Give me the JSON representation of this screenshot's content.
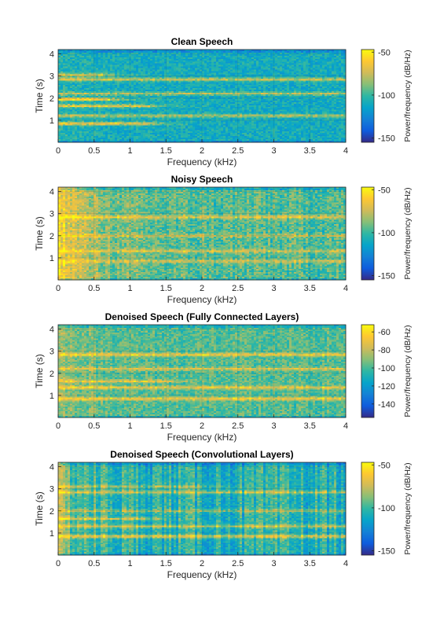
{
  "figure": {
    "background": "#ffffff"
  },
  "colormap": "parula",
  "colorbar_colors": [
    "#352a87",
    "#0f5cdd",
    "#1481d6",
    "#06a4ca",
    "#2eb7a4",
    "#87bf77",
    "#d1bb59",
    "#fec832",
    "#f9fb0e"
  ],
  "chart_data": [
    {
      "type": "heatmap",
      "title": "Clean Speech",
      "xlabel": "Frequency (kHz)",
      "ylabel": "Time (s)",
      "xlim": [
        0,
        4
      ],
      "ylim": [
        0,
        4.2
      ],
      "xticks": [
        0,
        0.5,
        1,
        1.5,
        2,
        2.5,
        3,
        3.5,
        4
      ],
      "yticks": [
        1,
        2,
        3,
        4
      ],
      "grid": true,
      "colorbar": {
        "label": "Power/frequency (dB/Hz)",
        "clim": [
          -155,
          -47
        ],
        "ticks": [
          -50,
          -100,
          -150
        ]
      },
      "base_level": 0.42,
      "noise_level": 0.1,
      "low_freq_boost": 0.05,
      "vertical_striping": 0.0,
      "bands": [
        {
          "time": 0.85,
          "strength": 0.42,
          "fmax": 1.2
        },
        {
          "time": 1.2,
          "strength": 0.3,
          "fmax": 4.0
        },
        {
          "time": 1.65,
          "strength": 0.4,
          "fmax": 1.2
        },
        {
          "time": 1.95,
          "strength": 0.48,
          "fmax": 0.7
        },
        {
          "time": 2.2,
          "strength": 0.28,
          "fmax": 4.0
        },
        {
          "time": 2.85,
          "strength": 0.35,
          "fmax": 4.0
        },
        {
          "time": 3.05,
          "strength": 0.35,
          "fmax": 0.6
        }
      ]
    },
    {
      "type": "heatmap",
      "title": "Noisy Speech",
      "xlabel": "Frequency (kHz)",
      "ylabel": "Time (s)",
      "xlim": [
        0,
        4
      ],
      "ylim": [
        0,
        4.2
      ],
      "xticks": [
        0,
        0.5,
        1,
        1.5,
        2,
        2.5,
        3,
        3.5,
        4
      ],
      "yticks": [
        1,
        2,
        3,
        4
      ],
      "grid": true,
      "colorbar": {
        "label": "Power/frequency (dB/Hz)",
        "clim": [
          -155,
          -47
        ],
        "ticks": [
          -50,
          -100,
          -150
        ]
      },
      "base_level": 0.55,
      "noise_level": 0.12,
      "low_freq_boost": 0.35,
      "vertical_striping": 0.06,
      "bands": [
        {
          "time": 0.85,
          "strength": 0.2,
          "fmax": 4.0
        },
        {
          "time": 1.3,
          "strength": 0.22,
          "fmax": 4.0
        },
        {
          "time": 2.0,
          "strength": 0.18,
          "fmax": 4.0
        },
        {
          "time": 2.85,
          "strength": 0.25,
          "fmax": 4.0
        }
      ]
    },
    {
      "type": "heatmap",
      "title": "Denoised Speech (Fully Connected Layers)",
      "xlabel": "Frequency (kHz)",
      "ylabel": "Time (s)",
      "xlim": [
        0,
        4
      ],
      "ylim": [
        0,
        4.2
      ],
      "xticks": [
        0,
        0.5,
        1,
        1.5,
        2,
        2.5,
        3,
        3.5,
        4
      ],
      "yticks": [
        1,
        2,
        3,
        4
      ],
      "grid": true,
      "colorbar": {
        "label": "Power/frequency (dB/Hz)",
        "clim": [
          -155,
          -52
        ],
        "ticks": [
          -60,
          -80,
          -100,
          -120,
          -140
        ]
      },
      "base_level": 0.55,
      "noise_level": 0.1,
      "low_freq_boost": 0.12,
      "vertical_striping": 0.04,
      "bands": [
        {
          "time": 0.85,
          "strength": 0.3,
          "fmax": 4.0
        },
        {
          "time": 1.35,
          "strength": 0.28,
          "fmax": 4.0
        },
        {
          "time": 1.65,
          "strength": 0.25,
          "fmax": 1.5
        },
        {
          "time": 2.2,
          "strength": 0.22,
          "fmax": 4.0
        },
        {
          "time": 2.85,
          "strength": 0.3,
          "fmax": 4.0
        }
      ]
    },
    {
      "type": "heatmap",
      "title": "Denoised Speech (Convolutional Layers)",
      "xlabel": "Frequency (kHz)",
      "ylabel": "Time (s)",
      "xlim": [
        0,
        4
      ],
      "ylim": [
        0,
        4.2
      ],
      "xticks": [
        0,
        0.5,
        1,
        1.5,
        2,
        2.5,
        3,
        3.5,
        4
      ],
      "yticks": [
        1,
        2,
        3,
        4
      ],
      "grid": true,
      "colorbar": {
        "label": "Power/frequency (dB/Hz)",
        "clim": [
          -155,
          -47
        ],
        "ticks": [
          -50,
          -100,
          -150
        ]
      },
      "base_level": 0.45,
      "noise_level": 0.09,
      "low_freq_boost": 0.18,
      "vertical_striping": 0.12,
      "bands": [
        {
          "time": 0.85,
          "strength": 0.35,
          "fmax": 4.0
        },
        {
          "time": 1.3,
          "strength": 0.28,
          "fmax": 4.0
        },
        {
          "time": 1.65,
          "strength": 0.3,
          "fmax": 1.2
        },
        {
          "time": 2.0,
          "strength": 0.22,
          "fmax": 4.0
        },
        {
          "time": 2.85,
          "strength": 0.28,
          "fmax": 4.0
        },
        {
          "time": 3.1,
          "strength": 0.22,
          "fmax": 2.0
        }
      ]
    }
  ]
}
